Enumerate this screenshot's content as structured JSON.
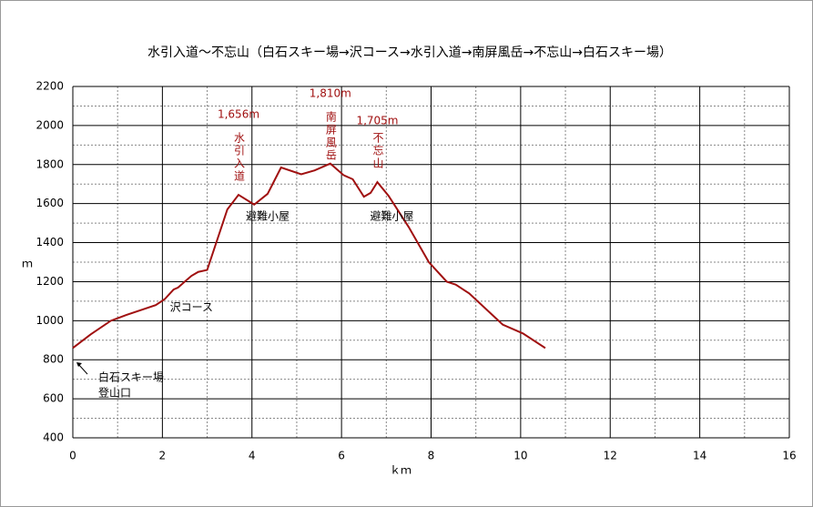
{
  "chart_data": {
    "type": "line",
    "title": "水引入道〜不忘山（白石スキー場→沢コース→水引入道→南屏風岳→不忘山→白石スキー場）",
    "x_label": "ｋｍ",
    "y_label": "ｍ",
    "xlim": [
      0,
      16
    ],
    "xticks": [
      0,
      2,
      4,
      6,
      8,
      10,
      12,
      14,
      16
    ],
    "ylim": [
      400,
      2200
    ],
    "yticks": [
      400,
      600,
      800,
      1000,
      1200,
      1400,
      1600,
      1800,
      2000,
      2200
    ],
    "grid": true,
    "minor_grid": true,
    "series": [
      {
        "color": "#a01010",
        "x": [
          0,
          0.4,
          0.85,
          1.2,
          1.85,
          2.05,
          2.25,
          2.35,
          2.55,
          2.65,
          2.8,
          3.0,
          3.45,
          3.7,
          4.05,
          4.35,
          4.65,
          5.1,
          5.4,
          5.75,
          6.05,
          6.25,
          6.5,
          6.65,
          6.8,
          7.05,
          7.5,
          7.95,
          8.35,
          8.55,
          8.85,
          9.6,
          10.05,
          10.55
        ],
        "values": [
          860,
          930,
          1000,
          1030,
          1080,
          1110,
          1160,
          1170,
          1210,
          1230,
          1250,
          1260,
          1570,
          1645,
          1595,
          1650,
          1785,
          1750,
          1770,
          1805,
          1745,
          1725,
          1635,
          1655,
          1710,
          1640,
          1480,
          1300,
          1200,
          1185,
          1140,
          980,
          935,
          860
        ]
      }
    ],
    "annotations": [
      {
        "text": "1,656m",
        "x": 3.7
      },
      {
        "text": "水引入道",
        "x": 3.7
      },
      {
        "text": "1,810m",
        "x": 5.75
      },
      {
        "text": "南屏風岳",
        "x": 5.75
      },
      {
        "text": "1,705m",
        "x": 6.8
      },
      {
        "text": "不忘山",
        "x": 6.8
      },
      {
        "text": "避難小屋",
        "x": 4.35
      },
      {
        "text": "避難小屋",
        "x": 6.8
      },
      {
        "text": "沢コース",
        "x": 2.65
      },
      {
        "text": "白石スキー場",
        "x": 1.2
      },
      {
        "text": "登山口",
        "x": 1.2
      }
    ]
  }
}
